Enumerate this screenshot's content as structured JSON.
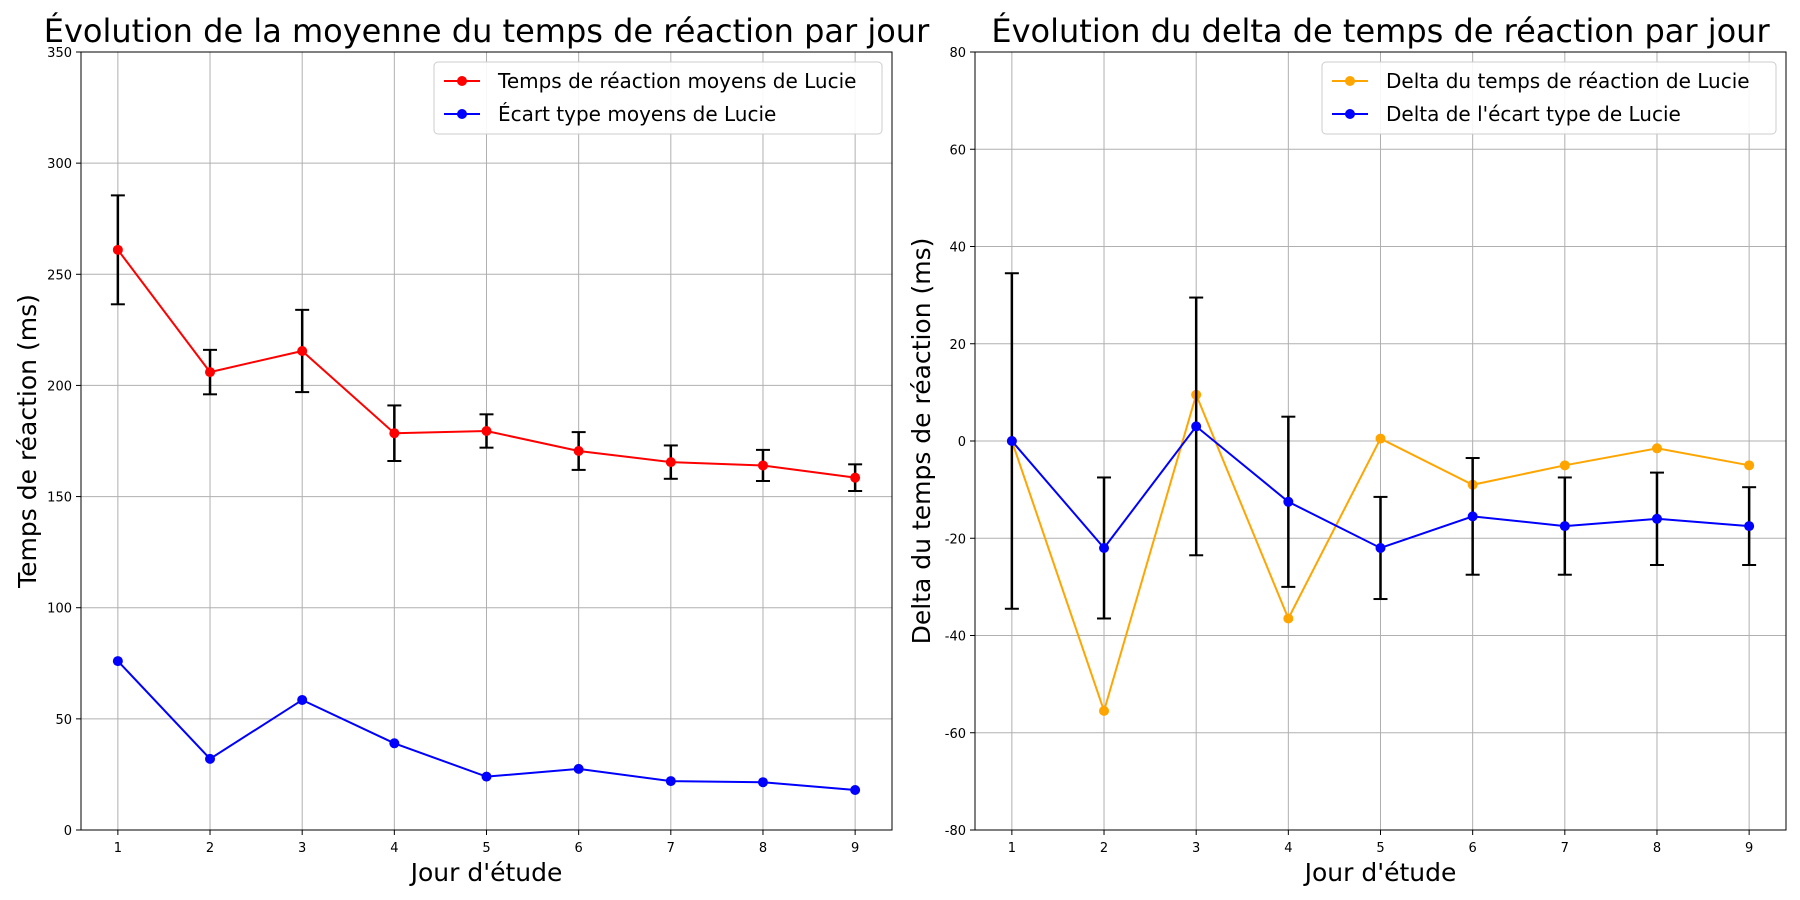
{
  "chart_data": [
    {
      "type": "line",
      "title": "Évolution de la moyenne du temps de réaction par jour",
      "xlabel": "Jour d'étude",
      "ylabel": "Temps de réaction (ms)",
      "x": [
        1,
        2,
        3,
        4,
        5,
        6,
        7,
        8,
        9
      ],
      "xlim": [
        0.6,
        9.4
      ],
      "ylim": [
        0,
        350
      ],
      "yticks": [
        0,
        50,
        100,
        150,
        200,
        250,
        300,
        350
      ],
      "grid": true,
      "legend_position": "upper right",
      "series": [
        {
          "name": "Temps de réaction moyens de Lucie",
          "color": "#ff0000",
          "values": [
            261,
            206,
            215.5,
            178.5,
            179.5,
            170.5,
            165.5,
            164,
            158.5
          ],
          "error": [
            24.5,
            10,
            18.5,
            12.5,
            7.5,
            8.5,
            7.5,
            7,
            6
          ]
        },
        {
          "name": "Écart type moyens de Lucie",
          "color": "#0000ff",
          "values": [
            76,
            32,
            58.5,
            39,
            24,
            27.5,
            22,
            21.5,
            18
          ],
          "error": null
        }
      ]
    },
    {
      "type": "line",
      "title": "Évolution du delta de temps de réaction par jour",
      "xlabel": "Jour d'étude",
      "ylabel": "Delta du temps de réaction (ms)",
      "x": [
        1,
        2,
        3,
        4,
        5,
        6,
        7,
        8,
        9
      ],
      "xlim": [
        0.6,
        9.4
      ],
      "ylim": [
        -80,
        80
      ],
      "yticks": [
        -80,
        -60,
        -40,
        -20,
        0,
        20,
        40,
        60,
        80
      ],
      "grid": true,
      "legend_position": "upper right",
      "series": [
        {
          "name": "Delta du temps de réaction de Lucie",
          "color": "#ffa500",
          "values": [
            0,
            -55.5,
            9.5,
            -36.5,
            0.5,
            -9,
            -5,
            -1.5,
            -5
          ],
          "error": null
        },
        {
          "name": "Delta de l'écart type de Lucie",
          "color": "#0000ff",
          "values": [
            0,
            -22,
            3,
            -12.5,
            -22,
            -15.5,
            -17.5,
            -16,
            -17.5
          ],
          "error": [
            34.5,
            14.5,
            26.5,
            17.5,
            10.5,
            12,
            10,
            9.5,
            8
          ]
        }
      ]
    }
  ]
}
